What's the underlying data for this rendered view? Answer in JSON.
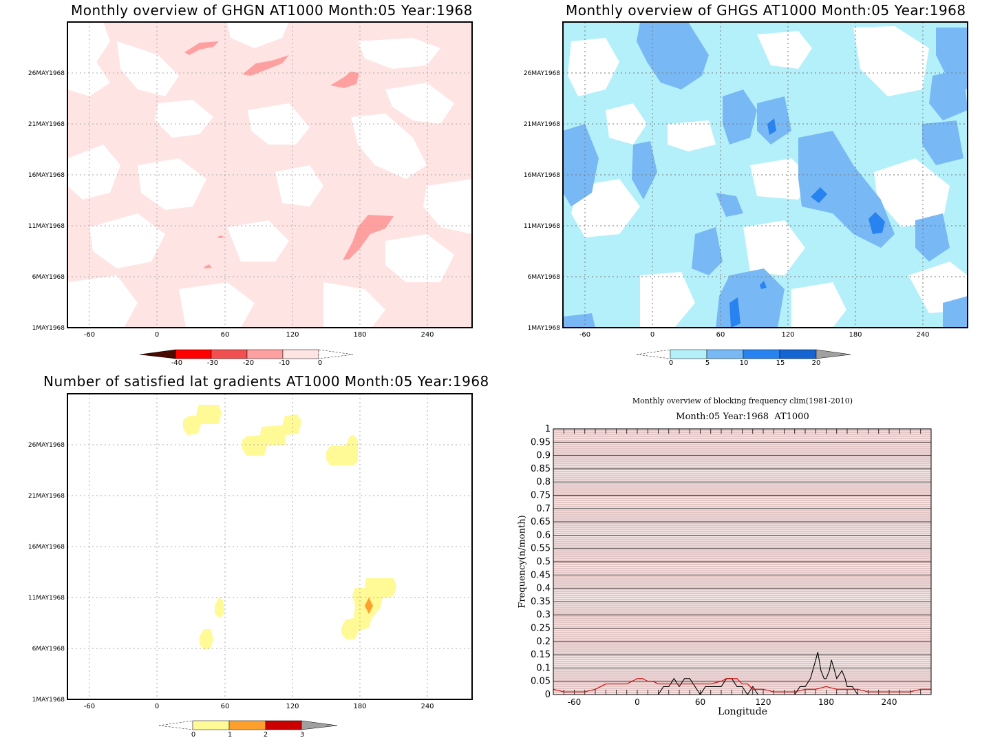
{
  "chart_data": [
    {
      "type": "heatmap",
      "title": "Monthly overview of GHGN AT1000 Month:05 Year:1968",
      "x_ticks": [
        "-60",
        "0",
        "60",
        "120",
        "180",
        "240"
      ],
      "y_ticks": [
        "1MAY1968",
        "6MAY1968",
        "11MAY1968",
        "16MAY1968",
        "21MAY1968",
        "26MAY1968"
      ],
      "colorbar": {
        "labels": [
          "-40",
          "-30",
          "-20",
          "-10",
          "0"
        ],
        "colors": [
          "#4a0a00",
          "#ff0000",
          "#f05050",
          "#ffa0a0",
          "#ffe4e4"
        ]
      },
      "grid": true
    },
    {
      "type": "heatmap",
      "title": "Monthly overview of GHGS AT1000 Month:05 Year:1968",
      "x_ticks": [
        "-60",
        "0",
        "60",
        "120",
        "180",
        "240"
      ],
      "y_ticks": [
        "1MAY1968",
        "6MAY1968",
        "11MAY1968",
        "16MAY1968",
        "21MAY1968",
        "26MAY1968"
      ],
      "colorbar": {
        "labels": [
          "0",
          "5",
          "10",
          "15",
          "20"
        ],
        "colors": [
          "#b4f0fa",
          "#78b9f5",
          "#2882f0",
          "#1464d2",
          "#a0a0a0"
        ]
      },
      "grid": true
    },
    {
      "type": "heatmap",
      "title": "Number of satisfied lat gradients AT1000 Month:05 Year:1968",
      "x_ticks": [
        "-60",
        "0",
        "60",
        "120",
        "180",
        "240"
      ],
      "y_ticks": [
        "1MAY1968",
        "6MAY1968",
        "11MAY1968",
        "16MAY1968",
        "21MAY1968",
        "26MAY1968"
      ],
      "colorbar": {
        "labels": [
          "0",
          "1",
          "2",
          "3"
        ],
        "colors": [
          "#fffa96",
          "#ffa02d",
          "#cd0000",
          "#a0a0a0"
        ]
      },
      "grid": true
    },
    {
      "type": "line",
      "title": "Monthly overview of blocking frequency clim(1981-2010)",
      "subtitle": "Month:05 Year:1968  AT1000",
      "xlabel": "Longitude",
      "ylabel": "Frequency(n/month)",
      "xlim": [
        -80,
        280
      ],
      "ylim": [
        0,
        1
      ],
      "x_ticks": [
        "-60",
        "0",
        "60",
        "120",
        "180",
        "240"
      ],
      "y_ticks": [
        "0",
        "0.05",
        "0.1",
        "0.15",
        "0.2",
        "0.25",
        "0.3",
        "0.35",
        "0.4",
        "0.45",
        "0.5",
        "0.55",
        "0.6",
        "0.65",
        "0.7",
        "0.75",
        "0.8",
        "0.85",
        "0.9",
        "0.95",
        "1"
      ],
      "series": [
        {
          "color": "#000000",
          "x": [
            -80,
            15,
            20,
            25,
            30,
            35,
            40,
            45,
            50,
            55,
            60,
            65,
            70,
            75,
            80,
            85,
            90,
            95,
            100,
            105,
            110,
            115,
            120,
            125,
            130,
            135,
            140,
            145,
            150,
            155,
            160,
            165,
            170,
            172,
            175,
            178,
            180,
            183,
            185,
            188,
            190,
            195,
            198,
            200,
            205,
            210,
            280
          ],
          "y": [
            0,
            0,
            0,
            0.03,
            0.03,
            0.06,
            0.03,
            0.06,
            0.06,
            0.03,
            0,
            0.03,
            0.03,
            0.03,
            0.03,
            0.06,
            0.06,
            0.03,
            0.03,
            0,
            0.03,
            0,
            0,
            0,
            0,
            0,
            0,
            0,
            0,
            0.03,
            0.03,
            0.06,
            0.13,
            0.16,
            0.09,
            0.06,
            0.06,
            0.09,
            0.13,
            0.09,
            0.06,
            0.09,
            0.06,
            0.03,
            0.03,
            0,
            0
          ]
        },
        {
          "color": "#dd0000",
          "x": [
            -80,
            -70,
            -60,
            -50,
            -40,
            -30,
            -20,
            -10,
            -5,
            0,
            5,
            10,
            15,
            20,
            25,
            30,
            40,
            50,
            60,
            70,
            80,
            85,
            90,
            95,
            100,
            105,
            110,
            120,
            130,
            140,
            150,
            160,
            170,
            180,
            190,
            200,
            210,
            220,
            230,
            240,
            250,
            260,
            270,
            280
          ],
          "y": [
            0.02,
            0.01,
            0.01,
            0.01,
            0.02,
            0.04,
            0.04,
            0.04,
            0.05,
            0.06,
            0.06,
            0.05,
            0.05,
            0.04,
            0.04,
            0.04,
            0.04,
            0.04,
            0.04,
            0.04,
            0.05,
            0.06,
            0.06,
            0.06,
            0.04,
            0.04,
            0.02,
            0.02,
            0.01,
            0.01,
            0.01,
            0.02,
            0.02,
            0.03,
            0.02,
            0.02,
            0.02,
            0.01,
            0.01,
            0.01,
            0.01,
            0.01,
            0.02,
            0.02
          ]
        }
      ],
      "grid": true
    }
  ]
}
